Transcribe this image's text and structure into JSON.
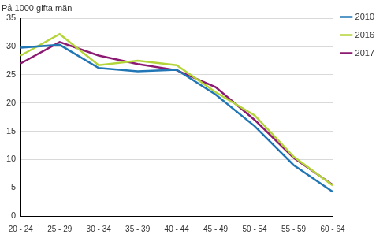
{
  "chart_data": {
    "type": "line",
    "ylabel": "På 1000 gifta män",
    "categories": [
      "20 - 24",
      "25 - 29",
      "30 - 34",
      "35 - 39",
      "40 - 44",
      "45 - 49",
      "50 - 54",
      "55 - 59",
      "60 - 64"
    ],
    "series": [
      {
        "name": "2010",
        "color": "#2176b5",
        "values": [
          29.8,
          30.3,
          26.2,
          25.6,
          25.9,
          21.5,
          15.9,
          9.0,
          4.3
        ]
      },
      {
        "name": "2016",
        "color": "#b3d53a",
        "values": [
          28.4,
          32.2,
          26.7,
          27.5,
          26.7,
          21.9,
          17.8,
          10.5,
          5.4
        ]
      },
      {
        "name": "2017",
        "color": "#8c1a72",
        "values": [
          27.0,
          30.8,
          28.4,
          26.9,
          25.8,
          22.8,
          17.0,
          10.3,
          5.5
        ]
      }
    ],
    "ylim": [
      0,
      35
    ],
    "yticks": [
      0,
      5,
      10,
      15,
      20,
      25,
      30,
      35
    ],
    "grid": true,
    "legend": "upper right"
  }
}
